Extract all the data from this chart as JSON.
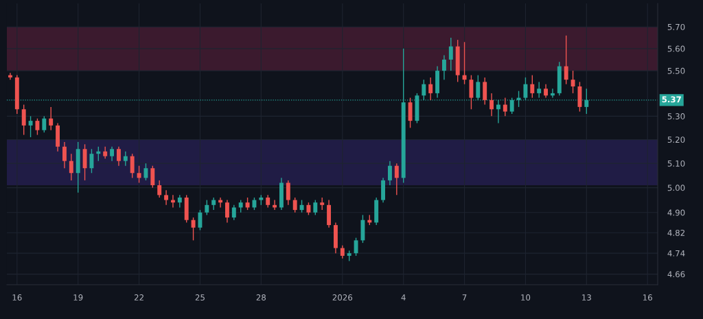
{
  "chart_data": {
    "type": "candlestick",
    "log": true,
    "grid": true,
    "x": [
      "2025-12-15T16:00",
      "2025-12-16T00:00",
      "2025-12-16T08:00",
      "2025-12-16T16:00",
      "2025-12-17T00:00",
      "2025-12-17T08:00",
      "2025-12-17T16:00",
      "2025-12-18T00:00",
      "2025-12-18T08:00",
      "2025-12-18T16:00",
      "2025-12-19T00:00",
      "2025-12-19T08:00",
      "2025-12-19T16:00",
      "2025-12-20T00:00",
      "2025-12-20T08:00",
      "2025-12-20T16:00",
      "2025-12-21T00:00",
      "2025-12-21T08:00",
      "2025-12-21T16:00",
      "2025-12-22T00:00",
      "2025-12-22T08:00",
      "2025-12-22T16:00",
      "2025-12-23T00:00",
      "2025-12-23T08:00",
      "2025-12-23T16:00",
      "2025-12-24T00:00",
      "2025-12-24T08:00",
      "2025-12-24T16:00",
      "2025-12-25T00:00",
      "2025-12-25T08:00",
      "2025-12-25T16:00",
      "2025-12-26T00:00",
      "2025-12-26T08:00",
      "2025-12-26T16:00",
      "2025-12-27T00:00",
      "2025-12-27T08:00",
      "2025-12-27T16:00",
      "2025-12-28T00:00",
      "2025-12-28T08:00",
      "2025-12-28T16:00",
      "2025-12-29T00:00",
      "2025-12-29T08:00",
      "2025-12-29T16:00",
      "2025-12-30T00:00",
      "2025-12-30T08:00",
      "2025-12-30T16:00",
      "2025-12-31T00:00",
      "2025-12-31T08:00",
      "2025-12-31T16:00",
      "2026-01-01T00:00",
      "2026-01-01T08:00",
      "2026-01-01T16:00",
      "2026-01-02T00:00",
      "2026-01-02T08:00",
      "2026-01-02T16:00",
      "2026-01-03T00:00",
      "2026-01-03T08:00",
      "2026-01-03T16:00",
      "2026-01-04T00:00",
      "2026-01-04T08:00",
      "2026-01-04T16:00",
      "2026-01-05T00:00",
      "2026-01-05T08:00",
      "2026-01-05T16:00",
      "2026-01-06T00:00",
      "2026-01-06T08:00",
      "2026-01-06T16:00",
      "2026-01-07T00:00",
      "2026-01-07T08:00",
      "2026-01-07T16:00",
      "2026-01-08T00:00",
      "2026-01-08T08:00",
      "2026-01-08T16:00",
      "2026-01-09T00:00",
      "2026-01-09T08:00",
      "2026-01-09T16:00",
      "2026-01-10T00:00",
      "2026-01-10T08:00",
      "2026-01-10T16:00",
      "2026-01-11T00:00",
      "2026-01-11T08:00",
      "2026-01-11T16:00",
      "2026-01-12T00:00",
      "2026-01-12T08:00",
      "2026-01-12T16:00",
      "2026-01-13T00:00"
    ],
    "ohlc": [
      [
        5.48,
        5.49,
        5.46,
        5.47
      ],
      [
        5.47,
        5.48,
        5.31,
        5.33
      ],
      [
        5.33,
        5.35,
        5.22,
        5.26
      ],
      [
        5.26,
        5.3,
        5.21,
        5.28
      ],
      [
        5.28,
        5.29,
        5.22,
        5.24
      ],
      [
        5.24,
        5.3,
        5.23,
        5.29
      ],
      [
        5.29,
        5.34,
        5.24,
        5.26
      ],
      [
        5.26,
        5.27,
        5.15,
        5.17
      ],
      [
        5.17,
        5.19,
        5.08,
        5.11
      ],
      [
        5.11,
        5.14,
        5.03,
        5.06
      ],
      [
        5.06,
        5.19,
        4.98,
        5.16
      ],
      [
        5.16,
        5.18,
        5.03,
        5.08
      ],
      [
        5.08,
        5.16,
        5.06,
        5.14
      ],
      [
        5.14,
        5.17,
        5.11,
        5.15
      ],
      [
        5.15,
        5.17,
        5.12,
        5.13
      ],
      [
        5.13,
        5.17,
        5.11,
        5.16
      ],
      [
        5.16,
        5.17,
        5.09,
        5.11
      ],
      [
        5.11,
        5.15,
        5.09,
        5.13
      ],
      [
        5.13,
        5.14,
        5.04,
        5.06
      ],
      [
        5.06,
        5.09,
        5.02,
        5.04
      ],
      [
        5.04,
        5.1,
        5.03,
        5.08
      ],
      [
        5.08,
        5.09,
        5.0,
        5.01
      ],
      [
        5.01,
        5.03,
        4.96,
        4.97
      ],
      [
        4.97,
        4.99,
        4.93,
        4.95
      ],
      [
        4.95,
        4.97,
        4.92,
        4.94
      ],
      [
        4.94,
        4.97,
        4.92,
        4.96
      ],
      [
        4.96,
        4.97,
        4.86,
        4.87
      ],
      [
        4.87,
        4.88,
        4.79,
        4.84
      ],
      [
        4.84,
        4.91,
        4.83,
        4.9
      ],
      [
        4.9,
        4.95,
        4.89,
        4.93
      ],
      [
        4.93,
        4.96,
        4.91,
        4.95
      ],
      [
        4.95,
        4.96,
        4.92,
        4.94
      ],
      [
        4.94,
        4.95,
        4.86,
        4.88
      ],
      [
        4.88,
        4.93,
        4.87,
        4.92
      ],
      [
        4.92,
        4.95,
        4.9,
        4.94
      ],
      [
        4.94,
        4.96,
        4.91,
        4.92
      ],
      [
        4.92,
        4.96,
        4.91,
        4.95
      ],
      [
        4.95,
        4.97,
        4.93,
        4.96
      ],
      [
        4.96,
        4.97,
        4.92,
        4.93
      ],
      [
        4.93,
        4.95,
        4.91,
        4.92
      ],
      [
        4.92,
        5.04,
        4.91,
        5.02
      ],
      [
        5.02,
        5.03,
        4.93,
        4.95
      ],
      [
        4.95,
        4.96,
        4.9,
        4.91
      ],
      [
        4.91,
        4.95,
        4.9,
        4.93
      ],
      [
        4.93,
        4.94,
        4.89,
        4.9
      ],
      [
        4.9,
        4.95,
        4.89,
        4.94
      ],
      [
        4.94,
        4.96,
        4.91,
        4.93
      ],
      [
        4.93,
        4.95,
        4.84,
        4.85
      ],
      [
        4.85,
        4.86,
        4.74,
        4.76
      ],
      [
        4.76,
        4.77,
        4.72,
        4.73
      ],
      [
        4.73,
        4.75,
        4.71,
        4.74
      ],
      [
        4.74,
        4.8,
        4.73,
        4.79
      ],
      [
        4.79,
        4.89,
        4.78,
        4.87
      ],
      [
        4.87,
        4.89,
        4.85,
        4.86
      ],
      [
        4.86,
        4.96,
        4.85,
        4.95
      ],
      [
        4.95,
        5.04,
        4.94,
        5.03
      ],
      [
        5.03,
        5.11,
        5.01,
        5.09
      ],
      [
        5.09,
        5.1,
        4.97,
        5.04
      ],
      [
        5.04,
        5.6,
        5.02,
        5.36
      ],
      [
        5.36,
        5.38,
        5.25,
        5.28
      ],
      [
        5.28,
        5.4,
        5.27,
        5.39
      ],
      [
        5.39,
        5.46,
        5.37,
        5.44
      ],
      [
        5.44,
        5.47,
        5.37,
        5.4
      ],
      [
        5.4,
        5.52,
        5.38,
        5.5
      ],
      [
        5.5,
        5.57,
        5.46,
        5.55
      ],
      [
        5.55,
        5.65,
        5.5,
        5.61
      ],
      [
        5.61,
        5.64,
        5.45,
        5.48
      ],
      [
        5.48,
        5.63,
        5.44,
        5.46
      ],
      [
        5.46,
        5.48,
        5.33,
        5.38
      ],
      [
        5.38,
        5.48,
        5.37,
        5.45
      ],
      [
        5.45,
        5.47,
        5.35,
        5.37
      ],
      [
        5.37,
        5.4,
        5.3,
        5.33
      ],
      [
        5.33,
        5.37,
        5.27,
        5.35
      ],
      [
        5.35,
        5.38,
        5.3,
        5.32
      ],
      [
        5.32,
        5.38,
        5.31,
        5.37
      ],
      [
        5.37,
        5.41,
        5.34,
        5.38
      ],
      [
        5.38,
        5.47,
        5.37,
        5.44
      ],
      [
        5.44,
        5.48,
        5.38,
        5.4
      ],
      [
        5.4,
        5.45,
        5.38,
        5.42
      ],
      [
        5.42,
        5.44,
        5.38,
        5.39
      ],
      [
        5.39,
        5.42,
        5.38,
        5.4
      ],
      [
        5.4,
        5.54,
        5.39,
        5.52
      ],
      [
        5.52,
        5.66,
        5.44,
        5.46
      ],
      [
        5.46,
        5.5,
        5.4,
        5.43
      ],
      [
        5.43,
        5.45,
        5.32,
        5.34
      ],
      [
        5.34,
        5.42,
        5.31,
        5.37
      ]
    ],
    "colors": [
      "#ef5350",
      "#ef5350",
      "#ef5350",
      "#26a69a",
      "#ef5350",
      "#26a69a",
      "#ef5350",
      "#ef5350",
      "#ef5350",
      "#ef5350",
      "#26a69a",
      "#ef5350",
      "#26a69a",
      "#26a69a",
      "#ef5350",
      "#26a69a",
      "#ef5350",
      "#26a69a",
      "#ef5350",
      "#ef5350",
      "#26a69a",
      "#ef5350",
      "#ef5350",
      "#ef5350",
      "#ef5350",
      "#26a69a",
      "#ef5350",
      "#ef5350",
      "#26a69a",
      "#26a69a",
      "#26a69a",
      "#ef5350",
      "#ef5350",
      "#26a69a",
      "#26a69a",
      "#ef5350",
      "#26a69a",
      "#26a69a",
      "#ef5350",
      "#ef5350",
      "#26a69a",
      "#ef5350",
      "#ef5350",
      "#26a69a",
      "#ef5350",
      "#26a69a",
      "#ef5350",
      "#ef5350",
      "#ef5350",
      "#ef5350",
      "#26a69a",
      "#26a69a",
      "#26a69a",
      "#ef5350",
      "#26a69a",
      "#26a69a",
      "#26a69a",
      "#ef5350",
      "#26a69a",
      "#ef5350",
      "#26a69a",
      "#26a69a",
      "#ef5350",
      "#26a69a",
      "#26a69a",
      "#26a69a",
      "#ef5350",
      "#ef5350",
      "#ef5350",
      "#26a69a",
      "#ef5350",
      "#ef5350",
      "#26a69a",
      "#ef5350",
      "#26a69a",
      "#26a69a",
      "#26a69a",
      "#ef5350",
      "#26a69a",
      "#ef5350",
      "#26a69a",
      "#26a69a",
      "#ef5350",
      "#ef5350",
      "#ef5350",
      "#26a69a"
    ],
    "xlim": [
      "2025-12-15T12:00",
      "2026-01-16T12:00"
    ],
    "xticks": [
      {
        "value": "2025-12-16",
        "label": "16"
      },
      {
        "value": "2025-12-19",
        "label": "19"
      },
      {
        "value": "2025-12-22",
        "label": "22"
      },
      {
        "value": "2025-12-25",
        "label": "25"
      },
      {
        "value": "2025-12-28",
        "label": "28"
      },
      {
        "value": "2026-01-01",
        "label": "2026"
      },
      {
        "value": "2026-01-04",
        "label": "4"
      },
      {
        "value": "2026-01-07",
        "label": "7"
      },
      {
        "value": "2026-01-10",
        "label": "10"
      },
      {
        "value": "2026-01-13",
        "label": "13"
      },
      {
        "value": "2026-01-16",
        "label": "16"
      }
    ],
    "ylim": [
      4.62,
      5.81
    ],
    "yticks": [
      {
        "value": 4.66,
        "label": "4.66"
      },
      {
        "value": 4.74,
        "label": "4.74"
      },
      {
        "value": 4.82,
        "label": "4.82"
      },
      {
        "value": 4.9,
        "label": "4.90"
      },
      {
        "value": 5.0,
        "label": "5.00"
      },
      {
        "value": 5.1,
        "label": "5.10"
      },
      {
        "value": 5.2,
        "label": "5.20"
      },
      {
        "value": 5.3,
        "label": "5.30"
      },
      {
        "value": 5.5,
        "label": "5.50"
      },
      {
        "value": 5.6,
        "label": "5.60"
      },
      {
        "value": 5.7,
        "label": "5.70"
      }
    ],
    "ref_lines": [
      {
        "axis": "y",
        "value": 5.37,
        "label": "5.37",
        "color": "#26a69a",
        "line_style": "dotted"
      }
    ],
    "bands": [
      {
        "axis": "y",
        "from": 5.5,
        "to": 5.7,
        "color": "#3b1a2e"
      },
      {
        "axis": "y",
        "from": 5.01,
        "to": 5.2,
        "color": "#201c45"
      }
    ]
  }
}
